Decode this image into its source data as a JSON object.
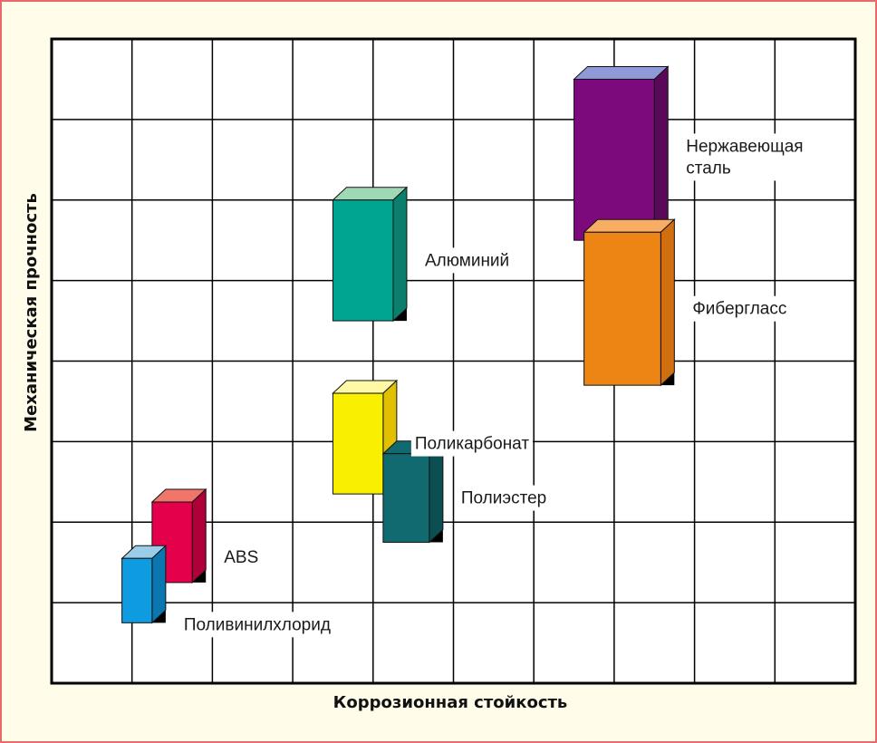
{
  "chart_data": {
    "type": "bar",
    "title": "",
    "xlabel": "Коррозионная стойкость",
    "ylabel": "Механическая прочность",
    "grid": true,
    "xlim": [
      0,
      10
    ],
    "ylim": [
      0,
      8
    ],
    "grid_lines": {
      "x": 10,
      "y": 8
    },
    "series": [
      {
        "name": "Нержавеющая сталь",
        "label_lines": [
          "Нержавеющая",
          "сталь"
        ],
        "x_start": 6.5,
        "x_end": 7.5,
        "y_low": 5.5,
        "y_high": 7.5,
        "color": "#7d0a7d",
        "top_color": "#8f99d8",
        "side_color": "#5a085a"
      },
      {
        "name": "Алюминий",
        "label_lines": [
          "Алюминий"
        ],
        "x_start": 3.5,
        "x_end": 4.25,
        "y_low": 4.5,
        "y_high": 6.0,
        "color": "#00a591",
        "top_color": "#9fd8b5",
        "side_color": "#0a7f6d"
      },
      {
        "name": "Фибергласс",
        "label_lines": [
          "Фибергласс"
        ],
        "x_start": 6.625,
        "x_end": 7.58,
        "y_low": 3.7,
        "y_high": 5.6,
        "color": "#ec8513",
        "top_color": "#f7ad63",
        "side_color": "#d06e10"
      },
      {
        "name": "Поликарбонат",
        "label_lines": [
          "Поликарбонат"
        ],
        "x_start": 3.5,
        "x_end": 4.125,
        "y_low": 2.35,
        "y_high": 3.6,
        "color": "#f8f000",
        "top_color": "#fff9a6",
        "side_color": "#e0c000"
      },
      {
        "name": "Полиэстер",
        "label_lines": [
          "Полиэстер"
        ],
        "x_start": 4.125,
        "x_end": 4.7,
        "y_low": 1.75,
        "y_high": 2.85,
        "color": "#116a6f",
        "top_color": "#116a6f",
        "side_color": "#0b4f52"
      },
      {
        "name": "ABS",
        "label_lines": [
          "ABS"
        ],
        "x_start": 1.25,
        "x_end": 1.75,
        "y_low": 1.25,
        "y_high": 2.25,
        "color": "#e4004a",
        "top_color": "#f0756a",
        "side_color": "#b00038"
      },
      {
        "name": "Поливинилхлорид",
        "label_lines": [
          "Поливинилхлорид"
        ],
        "x_start": 0.875,
        "x_end": 1.25,
        "y_low": 0.75,
        "y_high": 1.55,
        "color": "#0e9be0",
        "top_color": "#9bcde8",
        "side_color": "#0b77b0"
      }
    ]
  }
}
